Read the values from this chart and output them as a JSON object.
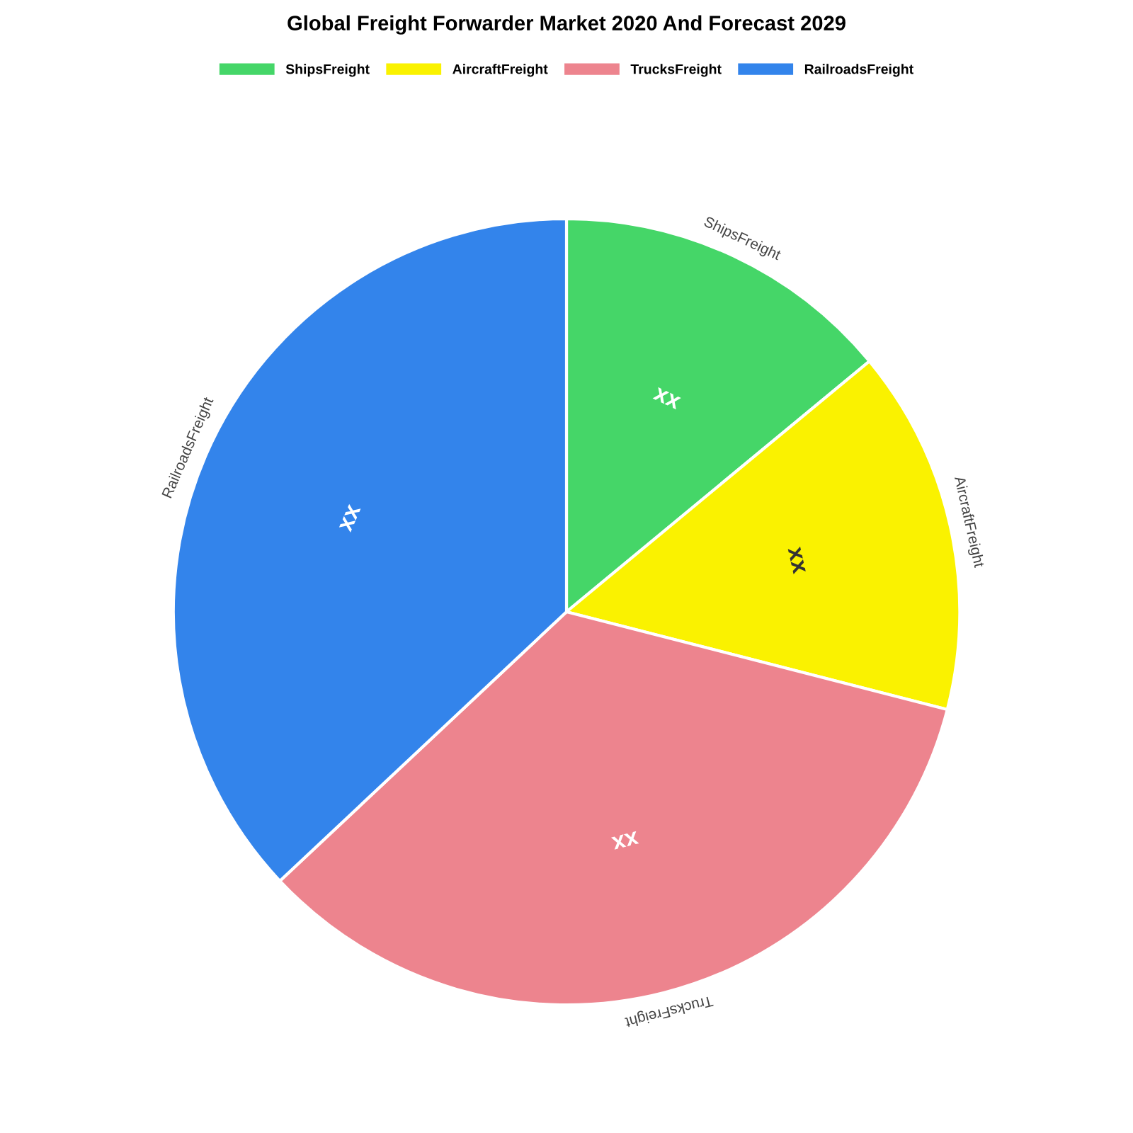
{
  "chart_data": {
    "type": "pie",
    "title": "Global Freight Forwarder Market 2020 And Forecast 2029",
    "categories": [
      "ShipsFreight",
      "AircraftFreight",
      "TrucksFreight",
      "RailroadsFreight"
    ],
    "values": [
      14,
      15,
      34,
      37
    ],
    "colors": [
      "#45d668",
      "#faf200",
      "#ed848e",
      "#3384eb"
    ],
    "value_labels": [
      "xx",
      "xx",
      "xx",
      "xx"
    ],
    "legend": "top"
  }
}
